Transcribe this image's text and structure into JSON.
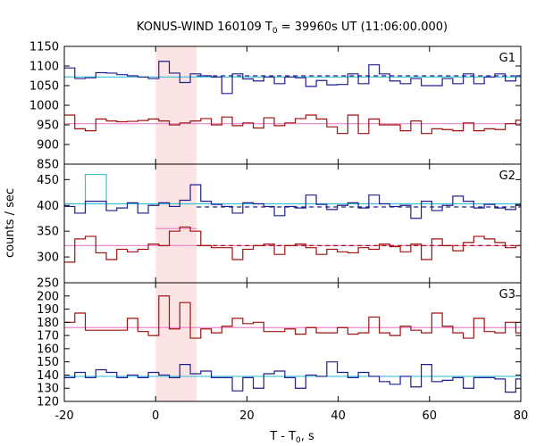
{
  "chart_data": {
    "type": "line",
    "title": "KONUS-WIND 160109 T",
    "title_sub": "0",
    "title_rest": " = 39960s UT (11:06:00.000)",
    "xlabel": "T - T",
    "xlabel_sub": "0",
    "xlabel_rest": ", s",
    "ylabel": "counts / sec",
    "xlim": [
      -20,
      80
    ],
    "x_ticks": [
      -20,
      0,
      20,
      40,
      60,
      80
    ],
    "highlight_interval": [
      0,
      9
    ],
    "colors": {
      "high_channel": "#1f1f8f",
      "low_channel": "#a01010",
      "fit_high": "#3cc0d8",
      "fit_low": "#ee88cc",
      "highlight": "#fde4e4"
    },
    "bin_edges": [
      -20,
      -17.7,
      -15.4,
      -13.1,
      -10.8,
      -8.5,
      -6.2,
      -3.9,
      -1.6,
      0.7,
      3,
      5.3,
      7.6,
      9.9,
      12.2,
      14.5,
      16.8,
      19.1,
      21.4,
      23.7,
      26,
      28.3,
      30.6,
      32.9,
      35.2,
      37.5,
      39.8,
      42.1,
      44.4,
      46.7,
      49,
      51.3,
      53.6,
      55.9,
      58.2,
      60.5,
      62.8,
      65.1,
      67.4,
      69.7,
      72,
      74.3,
      76.6,
      78.9,
      80
    ],
    "panels": [
      {
        "label": "G1",
        "ylim": [
          850,
          1150
        ],
        "y_ticks": [
          850,
          900,
          950,
          1000,
          1050,
          1100,
          1150
        ],
        "series": [
          {
            "channel": "high",
            "values": [
              1095,
              1068,
              1070,
              1083,
              1082,
              1078,
              1075,
              1072,
              1068,
              1112,
              1082,
              1058,
              1080,
              1075,
              1072,
              1030,
              1080,
              1067,
              1062,
              1072,
              1055,
              1072,
              1070,
              1048,
              1063,
              1052,
              1053,
              1080,
              1055,
              1103,
              1080,
              1062,
              1055,
              1068,
              1050,
              1050,
              1068,
              1055,
              1080,
              1055,
              1072,
              1080,
              1062,
              1075
            ],
            "fit": 1072
          },
          {
            "channel": "low",
            "values": [
              975,
              940,
              935,
              965,
              960,
              958,
              959,
              961,
              965,
              960,
              950,
              955,
              960,
              966,
              950,
              970,
              948,
              955,
              942,
              968,
              948,
              955,
              966,
              975,
              965,
              945,
              928,
              975,
              928,
              965,
              950,
              950,
              935,
              960,
              928,
              940,
              938,
              935,
              955,
              935,
              940,
              938,
              953,
              962
            ],
            "fit": 953
          }
        ],
        "dashed_level": 1075
      },
      {
        "label": "G2",
        "ylim": [
          250,
          480
        ],
        "y_ticks": [
          250,
          300,
          350,
          400,
          450
        ],
        "series": [
          {
            "channel": "high",
            "values": [
              398,
              385,
              408,
              408,
              390,
              395,
              405,
              385,
              400,
              405,
              398,
              410,
              440,
              408,
              402,
              398,
              385,
              405,
              403,
              398,
              380,
              398,
              395,
              420,
              402,
              392,
              400,
              405,
              395,
              420,
              403,
              398,
              400,
              375,
              408,
              390,
              400,
              418,
              408,
              395,
              402,
              395,
              392,
              402
            ],
            "fit": 403,
            "spike": {
              "from": -15.4,
              "to": -10.8,
              "value": 460
            }
          },
          {
            "channel": "low",
            "values": [
              290,
              335,
              340,
              308,
              295,
              315,
              310,
              315,
              325,
              322,
              350,
              358,
              350,
              322,
              318,
              318,
              295,
              315,
              322,
              325,
              305,
              322,
              325,
              318,
              305,
              315,
              310,
              308,
              318,
              315,
              325,
              320,
              310,
              325,
              295,
              335,
              322,
              312,
              328,
              340,
              335,
              328,
              318,
              322
            ],
            "fit": 322
          }
        ],
        "dashed_levels": [
          397,
          322
        ],
        "fit_segment_low": {
          "from": 0,
          "to": 9,
          "value": 355
        }
      },
      {
        "label": "G3",
        "ylim": [
          120,
          210
        ],
        "y_ticks": [
          120,
          130,
          140,
          150,
          160,
          170,
          180,
          190,
          200
        ],
        "series": [
          {
            "channel": "low",
            "values": [
              180,
              187,
              174,
              174,
              174,
              174,
              183,
              173,
              170,
              200,
              175,
              195,
              168,
              175,
              172,
              177,
              183,
              179,
              180,
              173,
              173,
              175,
              171,
              176,
              172,
              172,
              176,
              171,
              172,
              184,
              172,
              170,
              177,
              174,
              172,
              187,
              177,
              172,
              168,
              183,
              173,
              172,
              180,
              172
            ],
            "fit": 176
          },
          {
            "channel": "high",
            "values": [
              138,
              142,
              138,
              144,
              142,
              138,
              140,
              138,
              142,
              140,
              138,
              148,
              141,
              143,
              138,
              138,
              128,
              138,
              130,
              141,
              143,
              138,
              130,
              140,
              139,
              150,
              142,
              138,
              142,
              139,
              135,
              133,
              139,
              131,
              148,
              135,
              136,
              138,
              130,
              138,
              138,
              137,
              127,
              137
            ],
            "fit": 139
          }
        ]
      }
    ]
  }
}
